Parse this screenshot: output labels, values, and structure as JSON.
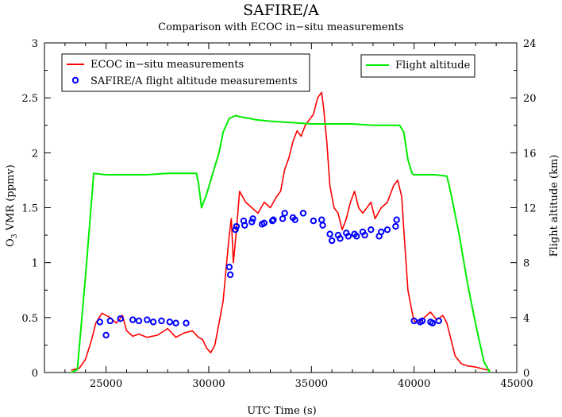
{
  "chart_data": {
    "type": "line",
    "title": "SAFIRE/A",
    "subtitle": "Comparison with ECOC in−situ measurements",
    "xlabel": "UTC Time (s)",
    "ylabel": "O3 VMR (ppmv)",
    "ylabel_main": "O",
    "ylabel_sub": "3",
    "ylabel_rest": " VMR (ppmv)",
    "y2label": "Flight altitude (km)",
    "xlim": [
      22000,
      45000
    ],
    "ylim": [
      0,
      3
    ],
    "y2lim": [
      0,
      24
    ],
    "xticks": [
      25000,
      30000,
      35000,
      40000,
      45000
    ],
    "xtick_labels": [
      "25000",
      "30000",
      "35000",
      "40000",
      "45000"
    ],
    "yticks": [
      0,
      0.5,
      1,
      1.5,
      2,
      2.5,
      3
    ],
    "ytick_labels": [
      "0",
      "0.5",
      "1",
      "1.5",
      "2",
      "2.5",
      "3"
    ],
    "y2ticks": [
      0,
      4,
      8,
      12,
      16,
      20,
      24
    ],
    "y2tick_labels": [
      "0",
      "4",
      "8",
      "12",
      "16",
      "20",
      "24"
    ],
    "grid": false,
    "legend_left": {
      "placement": "top-left",
      "entries": [
        {
          "label": "ECOC in−situ measurements",
          "color": "#ff0000",
          "marker": "line"
        },
        {
          "label": "SAFIRE/A flight altitude measurements",
          "color": "#0000ff",
          "marker": "circle"
        }
      ]
    },
    "legend_right": {
      "placement": "top-right",
      "entries": [
        {
          "label": "Flight altitude",
          "color": "#00ee00",
          "marker": "line"
        }
      ]
    },
    "series": [
      {
        "name": "ECOC in−situ measurements",
        "color": "#ff0000",
        "axis": "left",
        "style": "line",
        "x": [
          23300,
          23700,
          24000,
          24300,
          24500,
          24800,
          25200,
          25500,
          25800,
          26000,
          26300,
          26600,
          27000,
          27500,
          28000,
          28400,
          28800,
          29200,
          29500,
          29700,
          29900,
          30100,
          30300,
          30500,
          30700,
          30850,
          31000,
          31100,
          31200,
          31350,
          31500,
          31800,
          32100,
          32400,
          32700,
          33000,
          33300,
          33500,
          33700,
          33900,
          34100,
          34300,
          34500,
          34700,
          34900,
          35100,
          35300,
          35500,
          35600,
          35750,
          35900,
          36100,
          36300,
          36500,
          36700,
          36900,
          37100,
          37300,
          37500,
          37700,
          37900,
          38100,
          38400,
          38700,
          39000,
          39200,
          39400,
          39500,
          39700,
          39900,
          40000,
          40200,
          40500,
          40800,
          41100,
          41400,
          41600,
          41800,
          42000,
          42300,
          42600,
          43000,
          43400,
          43700
        ],
        "values": [
          0.02,
          0.04,
          0.12,
          0.3,
          0.45,
          0.54,
          0.5,
          0.45,
          0.52,
          0.38,
          0.33,
          0.35,
          0.32,
          0.34,
          0.4,
          0.32,
          0.36,
          0.38,
          0.32,
          0.3,
          0.22,
          0.18,
          0.25,
          0.45,
          0.65,
          0.95,
          1.25,
          1.4,
          1.0,
          1.3,
          1.65,
          1.55,
          1.5,
          1.45,
          1.55,
          1.5,
          1.6,
          1.65,
          1.85,
          1.95,
          2.1,
          2.2,
          2.15,
          2.25,
          2.3,
          2.35,
          2.5,
          2.55,
          2.4,
          2.1,
          1.7,
          1.5,
          1.45,
          1.3,
          1.4,
          1.55,
          1.65,
          1.5,
          1.45,
          1.5,
          1.55,
          1.4,
          1.5,
          1.55,
          1.7,
          1.75,
          1.6,
          1.3,
          0.75,
          0.55,
          0.47,
          0.45,
          0.5,
          0.55,
          0.48,
          0.52,
          0.45,
          0.3,
          0.15,
          0.08,
          0.06,
          0.05,
          0.03,
          0.02
        ]
      },
      {
        "name": "SAFIRE/A flight altitude measurements",
        "color": "#0000ff",
        "axis": "left",
        "style": "scatter",
        "x": [
          24700,
          25000,
          25200,
          25700,
          26300,
          26600,
          27000,
          27300,
          27700,
          28100,
          28400,
          28900,
          31000,
          31050,
          31300,
          31350,
          31700,
          31750,
          32100,
          32150,
          32600,
          32700,
          33100,
          33150,
          33600,
          33700,
          34100,
          34200,
          34600,
          35100,
          35500,
          35550,
          35900,
          36000,
          36300,
          36400,
          36700,
          36800,
          37100,
          37200,
          37500,
          37600,
          37900,
          38300,
          38400,
          38700,
          39100,
          39150,
          40000,
          40300,
          40400,
          40800,
          40900,
          41200
        ],
        "values": [
          0.46,
          0.34,
          0.47,
          0.49,
          0.48,
          0.47,
          0.48,
          0.46,
          0.47,
          0.46,
          0.45,
          0.45,
          0.96,
          0.89,
          1.3,
          1.33,
          1.38,
          1.34,
          1.37,
          1.4,
          1.35,
          1.36,
          1.38,
          1.39,
          1.4,
          1.45,
          1.41,
          1.39,
          1.45,
          1.38,
          1.39,
          1.34,
          1.26,
          1.2,
          1.25,
          1.22,
          1.27,
          1.24,
          1.26,
          1.24,
          1.28,
          1.25,
          1.3,
          1.24,
          1.28,
          1.3,
          1.33,
          1.39,
          0.47,
          0.46,
          0.47,
          0.46,
          0.45,
          0.47
        ]
      },
      {
        "name": "Flight altitude",
        "color": "#00ee00",
        "axis": "right",
        "style": "line",
        "x": [
          23300,
          23600,
          24000,
          24400,
          25000,
          26000,
          27000,
          28000,
          29000,
          29400,
          29500,
          29650,
          29900,
          30200,
          30500,
          30700,
          31000,
          31300,
          31600,
          32000,
          32300,
          33000,
          34000,
          35000,
          36000,
          37000,
          38000,
          39000,
          39300,
          39500,
          39700,
          39900,
          40000,
          41000,
          41600,
          41800,
          42200,
          42600,
          43000,
          43400,
          43700
        ],
        "values": [
          0.0,
          0.2,
          7.0,
          14.5,
          14.4,
          14.4,
          14.4,
          14.5,
          14.5,
          14.5,
          13.8,
          12.0,
          13.0,
          14.5,
          16.0,
          17.5,
          18.5,
          18.7,
          18.6,
          18.5,
          18.4,
          18.3,
          18.2,
          18.1,
          18.1,
          18.1,
          18.0,
          18.0,
          18.0,
          17.5,
          15.5,
          14.5,
          14.4,
          14.4,
          14.3,
          13.0,
          10.0,
          6.5,
          3.5,
          0.8,
          0.0
        ]
      }
    ]
  }
}
